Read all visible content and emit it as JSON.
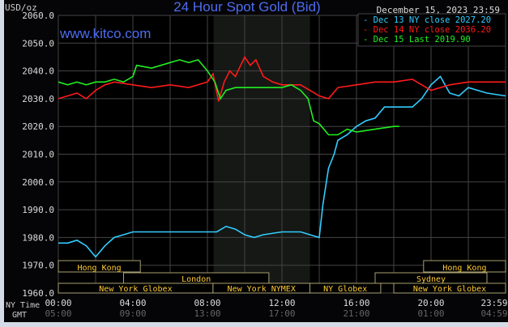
{
  "chart_data": {
    "type": "line",
    "title": "24 Hour Spot Gold (Bid)",
    "ylabel": "USD/oz",
    "watermark": "www.kitco.com",
    "timestamp": "December 15, 2023 23:59",
    "ylim": [
      1960,
      2060
    ],
    "yticks": [
      "2060.0",
      "2050.0",
      "2040.0",
      "2030.0",
      "2020.0",
      "2010.0",
      "2000.0",
      "1990.0",
      "1980.0",
      "1970.0",
      "1960.0"
    ],
    "xlim_hours": [
      0,
      24
    ],
    "x_row_labels": [
      "NY Time",
      "GMT"
    ],
    "xticks_ny": [
      "00:00",
      "04:00",
      "08:00",
      "12:00",
      "16:00",
      "20:00",
      "23:59"
    ],
    "xticks_gmt": [
      "05:00",
      "09:00",
      "13:00",
      "17:00",
      "21:00",
      "01:00",
      "04:59"
    ],
    "grid": true,
    "legend_position": "top-right",
    "highlight_hours": [
      8.33,
      13.5
    ],
    "sessions": [
      {
        "label": "Hong Kong",
        "row": 0,
        "start": 0,
        "end": 4.4
      },
      {
        "label": "Hong Kong",
        "row": 0,
        "start": 19.6,
        "end": 24
      },
      {
        "label": "London",
        "row": 1,
        "start": 3.5,
        "end": 11.3
      },
      {
        "label": "Sydney",
        "row": 1,
        "start": 17,
        "end": 23
      },
      {
        "label": "New York Globex",
        "row": 2,
        "start": 0,
        "end": 8.3
      },
      {
        "label": "New York NYMEX",
        "row": 2,
        "start": 8.3,
        "end": 13.5
      },
      {
        "label": "NY Globex",
        "row": 2,
        "start": 13.5,
        "end": 17.3
      },
      {
        "label": "New York Globex",
        "row": 2,
        "start": 18,
        "end": 24
      }
    ],
    "series": [
      {
        "name": "Dec 13 NY close 2027.20",
        "color": "#33ccff",
        "x": [
          0,
          0.5,
          1,
          1.5,
          2,
          2.5,
          3,
          3.5,
          4,
          5,
          6,
          7,
          8,
          8.5,
          9,
          9.5,
          10,
          10.5,
          11,
          12,
          13,
          13.5,
          14,
          14.2,
          14.5,
          14.8,
          15,
          15.5,
          16,
          16.5,
          17,
          17.5,
          18,
          18.5,
          19,
          19.5,
          20,
          20.5,
          21,
          21.5,
          22,
          23,
          24
        ],
        "y": [
          1978,
          1978,
          1979,
          1977,
          1973,
          1977,
          1980,
          1981,
          1982,
          1982,
          1982,
          1982,
          1982,
          1982,
          1984,
          1983,
          1981,
          1980,
          1981,
          1982,
          1982,
          1981,
          1980,
          1992,
          2005,
          2010,
          2015,
          2017,
          2020,
          2022,
          2023,
          2027,
          2027,
          2027,
          2027,
          2030,
          2035,
          2038,
          2032,
          2031,
          2034,
          2032,
          2031
        ]
      },
      {
        "name": "Dec 14 NY close 2036.20",
        "color": "#ff1a1a",
        "x": [
          0,
          0.5,
          1,
          1.5,
          2,
          2.5,
          3,
          4,
          5,
          6,
          7,
          8,
          8.3,
          8.6,
          8.9,
          9.2,
          9.5,
          10,
          10.3,
          10.6,
          11,
          11.5,
          12,
          13,
          13.5,
          14,
          14.5,
          15,
          16,
          17,
          18,
          19,
          19.5,
          20,
          21,
          22,
          23,
          24
        ],
        "y": [
          2030,
          2031,
          2032,
          2030,
          2033,
          2035,
          2036,
          2035,
          2034,
          2035,
          2034,
          2036,
          2039,
          2029,
          2036,
          2040,
          2038,
          2045,
          2042,
          2044,
          2038,
          2036,
          2035,
          2035,
          2033,
          2031,
          2030,
          2034,
          2035,
          2036,
          2036,
          2037,
          2035,
          2033,
          2035,
          2036,
          2036,
          2036
        ]
      },
      {
        "name": "Dec 15 Last 2019.90",
        "color": "#22ee22",
        "x": [
          0,
          0.5,
          1,
          1.5,
          2,
          2.5,
          3,
          3.5,
          4,
          4.2,
          5,
          6,
          6.5,
          7,
          7.5,
          8,
          8.4,
          8.7,
          9,
          9.5,
          10,
          11,
          12,
          12.5,
          13,
          13.4,
          13.7,
          14,
          14.5,
          15,
          15.5,
          16,
          17,
          18,
          18.3
        ],
        "y": [
          2036,
          2035,
          2036,
          2035,
          2036,
          2036,
          2037,
          2036,
          2038,
          2042,
          2041,
          2043,
          2044,
          2043,
          2044,
          2040,
          2036,
          2030,
          2033,
          2034,
          2034,
          2034,
          2034,
          2035,
          2033,
          2030,
          2022,
          2021,
          2017,
          2017,
          2019,
          2018,
          2019,
          2020,
          2020
        ]
      }
    ]
  }
}
